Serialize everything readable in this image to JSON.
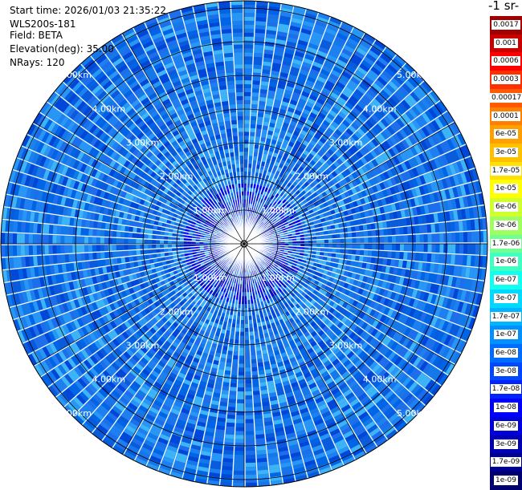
{
  "info": {
    "start_time": "Start time: 2026/01/03 21:35:22",
    "instrument": "WLS200s-181",
    "field": "Field: BETA",
    "elevation": "Elevation(deg): 35.00",
    "nrays": "NRays: 120"
  },
  "colorbar": {
    "title": "-1 sr-",
    "labels": [
      "0.0017",
      "0.001",
      "0.0006",
      "0.0003",
      "0.00017",
      "0.0001",
      "6e-05",
      "3e-05",
      "1.7e-05",
      "1e-05",
      "6e-06",
      "3e-06",
      "1.7e-06",
      "1e-06",
      "6e-07",
      "3e-07",
      "1.7e-07",
      "1e-07",
      "6e-08",
      "3e-08",
      "1.7e-08",
      "1e-08",
      "6e-09",
      "3e-09",
      "1.7e-09",
      "1e-09"
    ],
    "colors": [
      "#a00000",
      "#c80000",
      "#ff0000",
      "#ff3000",
      "#ff5a00",
      "#ff8000",
      "#ffa000",
      "#ffc000",
      "#ffe000",
      "#ffff00",
      "#d0ff30",
      "#a0ff60",
      "#70ff90",
      "#40ffc0",
      "#10ffef",
      "#00d8ff",
      "#00b4ff",
      "#0090ff",
      "#006cff",
      "#0048ff",
      "#0024ff",
      "#0000ff",
      "#0000d8",
      "#0000b0",
      "#000090",
      "#000070"
    ]
  },
  "range_labels": [
    "1.00km",
    "2.00km",
    "3.00km",
    "4.00km",
    "5.00km"
  ]
}
